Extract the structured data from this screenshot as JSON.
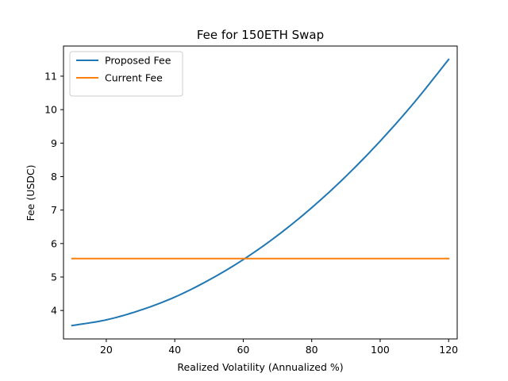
{
  "chart_data": {
    "type": "line",
    "title": "Fee for 150ETH Swap",
    "xlabel": "Realized Volatility (Annualized %)",
    "ylabel": "Fee (USDC)",
    "xlim": [
      7.5,
      122.5
    ],
    "ylim": [
      3.15,
      11.9
    ],
    "xticks": [
      20,
      40,
      60,
      80,
      100,
      120
    ],
    "yticks": [
      4,
      5,
      6,
      7,
      8,
      9,
      10,
      11
    ],
    "grid": false,
    "legend_position": "upper-left",
    "series": [
      {
        "name": "Proposed Fee",
        "color": "#1f77b4",
        "x": [
          10,
          20,
          30,
          40,
          50,
          60,
          70,
          80,
          90,
          100,
          110,
          120
        ],
        "y": [
          3.55,
          3.72,
          4.01,
          4.4,
          4.91,
          5.52,
          6.24,
          7.07,
          8.01,
          9.06,
          10.22,
          11.5
        ]
      },
      {
        "name": "Current Fee",
        "color": "#ff7f0e",
        "x": [
          10,
          120
        ],
        "y": [
          5.55,
          5.55
        ]
      }
    ]
  }
}
